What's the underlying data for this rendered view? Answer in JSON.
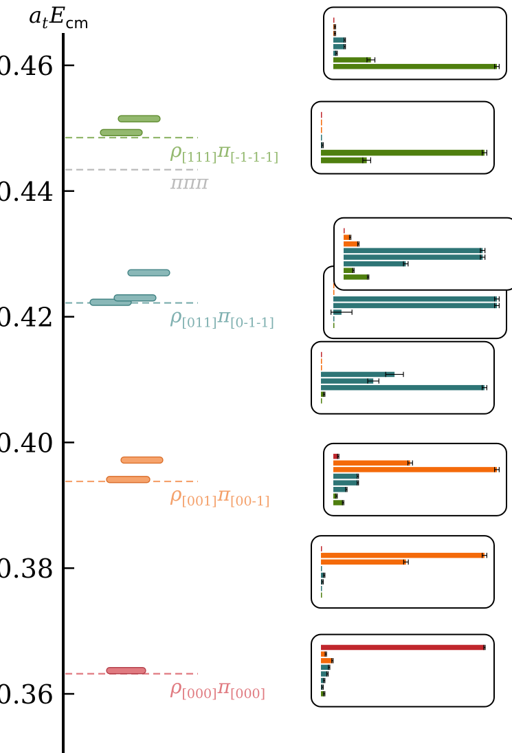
{
  "chart_data": {
    "type": "bar",
    "ylabel": {
      "italic": "a",
      "sub": "t",
      "italic2": "E",
      "sub2": "cm"
    },
    "yticks": [
      "0.36",
      "0.38",
      "0.40",
      "0.42",
      "0.44",
      "0.46"
    ],
    "tick_values": [
      0.36,
      0.38,
      0.4,
      0.42,
      0.44,
      0.46
    ],
    "ylim": [
      0.351,
      0.469
    ],
    "colors": {
      "red": "#c0272d",
      "orange": "#f46a0a",
      "teal": "#2e7576",
      "green": "#4f7f0f",
      "grey": "#bbbbbb"
    },
    "thresholds": [
      {
        "value": 0.3632,
        "color": "#e07a80",
        "rho": "[000]",
        "pi": "[000]"
      },
      {
        "value": 0.3938,
        "color": "#f4a06a",
        "rho": "[001]",
        "pi": "[00-1]"
      },
      {
        "value": 0.4222,
        "color": "#7fb0b0",
        "rho": "[011]",
        "pi": "[0-1-1]"
      },
      {
        "value": 0.4434,
        "color": "#bbbbbb",
        "label": "πππ"
      },
      {
        "value": 0.4485,
        "color": "#93b86e",
        "rho": "[111]",
        "pi": "[-1-1-1]"
      }
    ],
    "levels": [
      {
        "value": 0.3637,
        "fill": "#e07a80",
        "stroke": "#b23d48",
        "x1": 0.155,
        "x2": 0.212
      },
      {
        "value": 0.3941,
        "fill": "#f6a36c",
        "stroke": "#d86a25",
        "x1": 0.155,
        "x2": 0.218
      },
      {
        "value": 0.3972,
        "fill": "#f6a36c",
        "stroke": "#d86a25",
        "x1": 0.176,
        "x2": 0.237
      },
      {
        "value": 0.4223,
        "fill": "#8ab8b8",
        "stroke": "#3b7e7f",
        "x1": 0.131,
        "x2": 0.191
      },
      {
        "value": 0.423,
        "fill": "#8ab8b8",
        "stroke": "#3b7e7f",
        "x1": 0.166,
        "x2": 0.227
      },
      {
        "value": 0.427,
        "fill": "#8ab8b8",
        "stroke": "#3b7e7f",
        "x1": 0.186,
        "x2": 0.247
      },
      {
        "value": 0.4493,
        "fill": "#93b86e",
        "stroke": "#5c8a2c",
        "x1": 0.146,
        "x2": 0.207
      },
      {
        "value": 0.4515,
        "fill": "#93b86e",
        "stroke": "#5c8a2c",
        "x1": 0.172,
        "x2": 0.233
      }
    ],
    "histograms": [
      {
        "level": 0.3637,
        "bars": [
          {
            "c": "red",
            "v": 1.0,
            "e": 0.0
          },
          {
            "c": "orange",
            "v": 0.03,
            "e": 0.0
          },
          {
            "c": "orange",
            "v": 0.07,
            "e": 0.0
          },
          {
            "c": "teal",
            "v": 0.05,
            "e": 0.0
          },
          {
            "c": "teal",
            "v": 0.04,
            "e": 0.0
          },
          {
            "c": "teal",
            "v": 0.02,
            "e": 0.0
          },
          {
            "c": "teal",
            "v": 0.01,
            "e": 0.0
          },
          {
            "c": "green",
            "v": 0.02,
            "e": 0.0
          }
        ]
      },
      {
        "level": 0.3794,
        "bars": [
          {
            "c": "red",
            "v": 0.0,
            "e": 0.0
          },
          {
            "c": "orange",
            "v": 1.0,
            "e": 0.01
          },
          {
            "c": "orange",
            "v": 0.52,
            "e": 0.01
          },
          {
            "c": "teal",
            "v": 0.0,
            "e": 0.0
          },
          {
            "c": "teal",
            "v": 0.02,
            "e": 0.0
          },
          {
            "c": "teal",
            "v": 0.01,
            "e": 0.0
          },
          {
            "c": "teal",
            "v": 0.0,
            "e": 0.0
          },
          {
            "c": "green",
            "v": 0.0,
            "e": 0.0
          }
        ]
      },
      {
        "level": 0.3941,
        "bars": [
          {
            "c": "red",
            "v": 0.03,
            "e": 0.0
          },
          {
            "c": "orange",
            "v": 0.47,
            "e": 0.01
          },
          {
            "c": "orange",
            "v": 1.0,
            "e": 0.01
          },
          {
            "c": "teal",
            "v": 0.15,
            "e": 0.0
          },
          {
            "c": "teal",
            "v": 0.15,
            "e": 0.0
          },
          {
            "c": "teal",
            "v": 0.08,
            "e": 0.0
          },
          {
            "c": "green",
            "v": 0.02,
            "e": 0.0
          },
          {
            "c": "green",
            "v": 0.06,
            "e": 0.0
          }
        ]
      },
      {
        "level": 0.4103,
        "bars": [
          {
            "c": "red",
            "v": 0.0,
            "e": 0.0
          },
          {
            "c": "orange",
            "v": 0.0,
            "e": 0.0
          },
          {
            "c": "orange",
            "v": 0.0,
            "e": 0.0
          },
          {
            "c": "teal",
            "v": 0.45,
            "e": 0.05
          },
          {
            "c": "teal",
            "v": 0.32,
            "e": 0.03
          },
          {
            "c": "teal",
            "v": 1.0,
            "e": 0.01
          },
          {
            "c": "green",
            "v": 0.02,
            "e": 0.0
          },
          {
            "c": "green",
            "v": 0.0,
            "e": 0.0
          }
        ]
      },
      {
        "level": 0.4223,
        "bars": [
          {
            "c": "red",
            "v": 0.0,
            "e": 0.0
          },
          {
            "c": "orange",
            "v": 0.0,
            "e": 0.0
          },
          {
            "c": "orange",
            "v": 0.0,
            "e": 0.0
          },
          {
            "c": "teal",
            "v": 1.0,
            "e": 0.01
          },
          {
            "c": "teal",
            "v": 1.0,
            "e": 0.01
          },
          {
            "c": "teal",
            "v": 0.05,
            "e": 0.06
          },
          {
            "c": "teal",
            "v": 0.0,
            "e": 0.0
          },
          {
            "c": "green",
            "v": 0.0,
            "e": 0.0
          }
        ]
      },
      {
        "level": 0.43,
        "bars": [
          {
            "c": "red",
            "v": 0.0,
            "e": 0.0
          },
          {
            "c": "orange",
            "v": 0.04,
            "e": 0.0
          },
          {
            "c": "orange",
            "v": 0.09,
            "e": 0.0
          },
          {
            "c": "teal",
            "v": 0.85,
            "e": 0.01
          },
          {
            "c": "teal",
            "v": 0.85,
            "e": 0.01
          },
          {
            "c": "teal",
            "v": 0.38,
            "e": 0.01
          },
          {
            "c": "green",
            "v": 0.06,
            "e": 0.0
          },
          {
            "c": "green",
            "v": 0.15,
            "e": 0.0
          }
        ]
      },
      {
        "level": 0.4485,
        "bars": [
          {
            "c": "red",
            "v": 0.0,
            "e": 0.0
          },
          {
            "c": "orange",
            "v": 0.0,
            "e": 0.0
          },
          {
            "c": "orange",
            "v": 0.0,
            "e": 0.0
          },
          {
            "c": "teal",
            "v": 0.0,
            "e": 0.0
          },
          {
            "c": "teal",
            "v": 0.01,
            "e": 0.0
          },
          {
            "c": "green",
            "v": 1.0,
            "e": 0.01
          },
          {
            "c": "green",
            "v": 0.28,
            "e": 0.02
          }
        ]
      },
      {
        "level": 0.4635,
        "bars": [
          {
            "c": "red",
            "v": 0.0,
            "e": 0.0
          },
          {
            "c": "orange",
            "v": 0.01,
            "e": 0.0
          },
          {
            "c": "orange",
            "v": 0.01,
            "e": 0.0
          },
          {
            "c": "teal",
            "v": 0.07,
            "e": 0.0
          },
          {
            "c": "teal",
            "v": 0.07,
            "e": 0.0
          },
          {
            "c": "teal",
            "v": 0.02,
            "e": 0.0
          },
          {
            "c": "green",
            "v": 0.23,
            "e": 0.02
          },
          {
            "c": "green",
            "v": 1.0,
            "e": 0.01
          }
        ]
      }
    ]
  }
}
